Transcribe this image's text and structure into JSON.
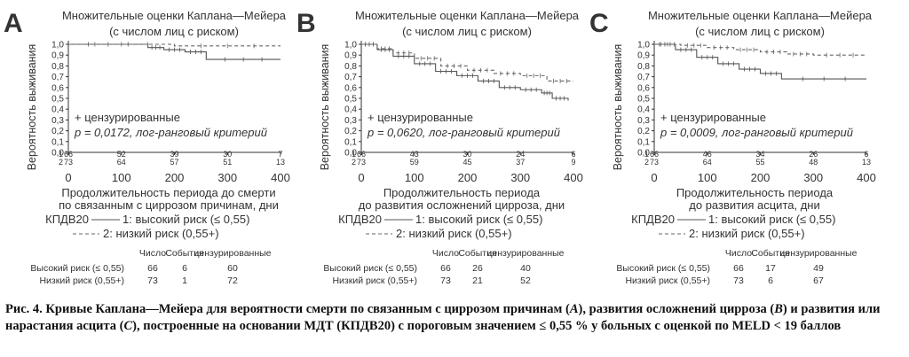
{
  "chart_data": [
    {
      "type": "line",
      "panel_letter": "A",
      "title": "Множительные оценки Каплана—Мейера",
      "subtitle": "(с числом лиц с риском)",
      "ylabel": "Вероятность выживания",
      "xlabel_lines": [
        "Продолжительность периода до смерти",
        "по связанным с циррозом причинам, дни"
      ],
      "xlim": [
        0,
        400
      ],
      "ylim": [
        0,
        1.0
      ],
      "xticks": [
        "0",
        "100",
        "200",
        "300",
        "400"
      ],
      "yticks": [
        "0,0",
        "0,1",
        "0,2",
        "0,3",
        "0,4",
        "0,5",
        "0,6",
        "0,7",
        "0,8",
        "0,9",
        "1,0"
      ],
      "annotation_censored": "+ цензурированные",
      "annotation_p": "p = 0,0172, лог-ранговый критерий",
      "risk_rows": [
        [
          "66",
          "52",
          "39",
          "30",
          "7"
        ],
        [
          "73",
          "64",
          "57",
          "51",
          "13"
        ]
      ],
      "risk_row_ids": [
        "1",
        "2"
      ],
      "legend_prefix": "КПДВ20",
      "legend": [
        "1: высокий риск (≤ 0,55)",
        "2: низкий риск (0,55+)"
      ],
      "series": [
        {
          "name": "1: высокий риск (≤ 0,55)",
          "style": "solid",
          "x": [
            0,
            150,
            180,
            220,
            260,
            400
          ],
          "y": [
            1.0,
            0.97,
            0.95,
            0.93,
            0.86,
            0.86
          ]
        },
        {
          "name": "2: низкий риск (0,55+)",
          "style": "dashed",
          "x": [
            0,
            200,
            400
          ],
          "y": [
            1.0,
            0.985,
            0.985
          ]
        }
      ],
      "table_headers": [
        "Число",
        "События",
        "цензурированные"
      ],
      "table_rows": [
        [
          "Высокий риск (≤ 0,55)",
          "66",
          "6",
          "60"
        ],
        [
          "Низкий риск (0,55+)",
          "73",
          "1",
          "72"
        ]
      ]
    },
    {
      "type": "line",
      "panel_letter": "B",
      "title": "Множительные оценки Каплана—Мейера",
      "subtitle": "(с числом лиц с риском)",
      "ylabel": "Вероятность выживания",
      "xlabel_lines": [
        "Продолжительность периода",
        "до развития осложнений цирроза, дни"
      ],
      "xlim": [
        0,
        400
      ],
      "ylim": [
        0,
        1.0
      ],
      "xticks": [
        "0",
        "100",
        "200",
        "300",
        "400"
      ],
      "yticks": [
        "0,0",
        "0,1",
        "0,2",
        "0,3",
        "0,4",
        "0,5",
        "0,6",
        "0,7",
        "0,8",
        "0,9",
        "1,0"
      ],
      "annotation_censored": "+ цензурированные",
      "annotation_p": "p = 0,0620, лог-ранговый критерий",
      "risk_rows": [
        [
          "66",
          "43",
          "30",
          "24",
          "6"
        ],
        [
          "73",
          "59",
          "45",
          "37",
          "9"
        ]
      ],
      "risk_row_ids": [
        "1",
        "2"
      ],
      "legend_prefix": "КПДВ20",
      "legend": [
        "1: высокий риск (≤ 0,55)",
        "2: низкий риск (0,55+)"
      ],
      "series": [
        {
          "name": "1: высокий риск (≤ 0,55)",
          "style": "solid",
          "x": [
            0,
            30,
            60,
            100,
            140,
            180,
            220,
            260,
            300,
            340,
            360,
            390
          ],
          "y": [
            1.0,
            0.95,
            0.89,
            0.82,
            0.75,
            0.71,
            0.66,
            0.6,
            0.58,
            0.55,
            0.5,
            0.48
          ]
        },
        {
          "name": "2: низкий риск (0,55+)",
          "style": "dashed",
          "x": [
            0,
            30,
            60,
            100,
            150,
            200,
            250,
            300,
            350,
            400
          ],
          "y": [
            1.0,
            0.96,
            0.92,
            0.87,
            0.8,
            0.76,
            0.73,
            0.71,
            0.66,
            0.66
          ]
        }
      ],
      "table_headers": [
        "Число",
        "События",
        "цензурированные"
      ],
      "table_rows": [
        [
          "Высокий риск (≤ 0,55)",
          "66",
          "26",
          "40"
        ],
        [
          "Низкий риск (0,55+)",
          "73",
          "21",
          "52"
        ]
      ]
    },
    {
      "type": "line",
      "panel_letter": "C",
      "title": "Множительные оценки Каплана—Мейера",
      "subtitle": "(с числом лиц с риском)",
      "ylabel": "Вероятность выживания",
      "xlabel_lines": [
        "Продолжительность периода",
        "до развития асцита, дни"
      ],
      "xlim": [
        0,
        400
      ],
      "ylim": [
        0,
        1.0
      ],
      "xticks": [
        "0",
        "100",
        "200",
        "300",
        "400"
      ],
      "yticks": [
        "0,0",
        "0,1",
        "0,2",
        "0,3",
        "0,4",
        "0,5",
        "0,6",
        "0,7",
        "0,8",
        "0,9",
        "1,0"
      ],
      "annotation_censored": "+ цензурированные",
      "annotation_p": "p = 0,0009, лог-ранговый критерий",
      "risk_rows": [
        [
          "66",
          "46",
          "34",
          "26",
          "6"
        ],
        [
          "73",
          "64",
          "55",
          "48",
          "13"
        ]
      ],
      "risk_row_ids": [
        "1",
        "2"
      ],
      "legend_prefix": "КПДВ20",
      "legend": [
        "1: высокий риск (≤ 0,55)",
        "2: низкий риск (0,55+)"
      ],
      "series": [
        {
          "name": "1: высокий риск (≤ 0,55)",
          "style": "solid",
          "x": [
            0,
            40,
            80,
            120,
            160,
            200,
            240,
            400
          ],
          "y": [
            1.0,
            0.95,
            0.88,
            0.82,
            0.77,
            0.73,
            0.68,
            0.68
          ]
        },
        {
          "name": "2: низкий риск (0,55+)",
          "style": "dashed",
          "x": [
            0,
            50,
            100,
            150,
            200,
            250,
            300,
            400
          ],
          "y": [
            1.0,
            0.99,
            0.97,
            0.95,
            0.93,
            0.91,
            0.9,
            0.9
          ]
        }
      ],
      "table_headers": [
        "Число",
        "События",
        "цензурированные"
      ],
      "table_rows": [
        [
          "Высокий риск (≤ 0,55)",
          "66",
          "17",
          "49"
        ],
        [
          "Низкий риск (0,55+)",
          "73",
          "6",
          "67"
        ]
      ]
    }
  ],
  "caption": {
    "prefix": "Рис. 4. Кривые Каплана—Мейера для вероятности смерти по связанным с циррозом причинам (",
    "letter_a": "A",
    "part2": "), развития осложнений цирроза (",
    "letter_b": "B",
    "part3": ") и развития или нарастания асцита (",
    "letter_c": "C",
    "part4": "), построенные на основании МДТ (КПДВ20) с пороговым значением ≤ 0,55 % у больных с оценкой по MELD < 19 баллов"
  },
  "colors": {
    "solid_line": "#555555",
    "dashed_line": "#666666",
    "axis": "#333333",
    "text": "#333333"
  }
}
